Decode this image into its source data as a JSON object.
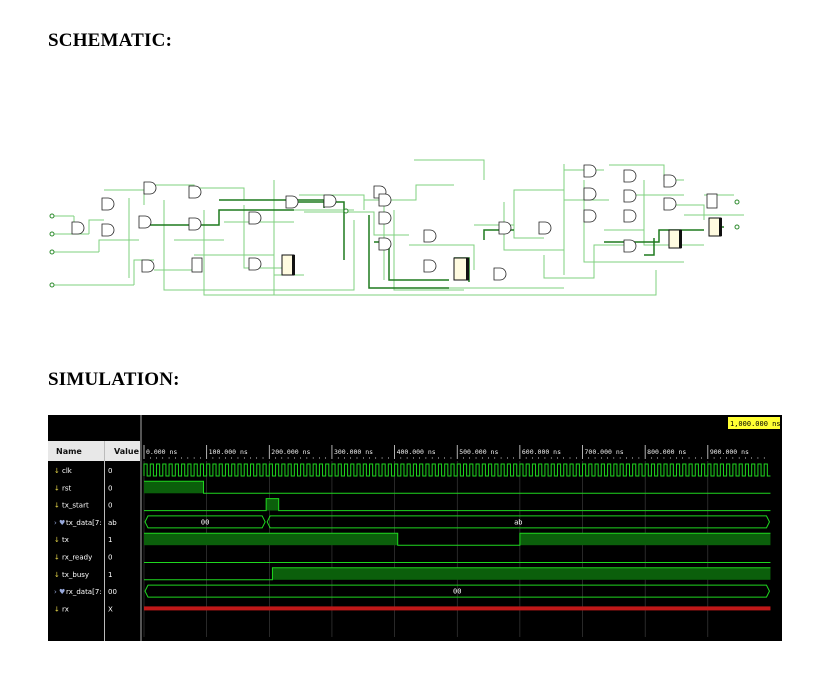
{
  "headings": {
    "schematic": "SCHEMATIC:",
    "simulation": "SIMULATION:"
  },
  "waveform": {
    "cursor_label": "1,000.000 ns",
    "col_name": "Name",
    "col_value": "Value",
    "time_ticks": [
      "0.000 ns",
      "100.000 ns",
      "200.000 ns",
      "300.000 ns",
      "400.000 ns",
      "500.000 ns",
      "600.000 ns",
      "700.000 ns",
      "800.000 ns",
      "900.000 ns"
    ],
    "signals": [
      {
        "name": "clk",
        "value": "0",
        "kind": "clock",
        "bus": false
      },
      {
        "name": "rst",
        "value": "0",
        "kind": "bit",
        "bus": false,
        "segments": [
          [
            0,
            95,
            1
          ],
          [
            95,
            1000,
            0
          ]
        ]
      },
      {
        "name": "tx_start",
        "value": "0",
        "kind": "bit",
        "bus": false,
        "segments": [
          [
            0,
            195,
            0
          ],
          [
            195,
            215,
            1
          ],
          [
            215,
            1000,
            0
          ]
        ]
      },
      {
        "name": "tx_data[7:0]",
        "value": "ab",
        "kind": "bus",
        "bus": true,
        "segments": [
          [
            0,
            195,
            "00"
          ],
          [
            195,
            1000,
            "ab"
          ]
        ]
      },
      {
        "name": "tx",
        "value": "1",
        "kind": "bit",
        "bus": false,
        "segments": [
          [
            0,
            405,
            1
          ],
          [
            405,
            600,
            0
          ],
          [
            600,
            1000,
            1
          ]
        ]
      },
      {
        "name": "rx_ready",
        "value": "0",
        "kind": "bit",
        "bus": false,
        "segments": [
          [
            0,
            1000,
            0
          ]
        ]
      },
      {
        "name": "tx_busy",
        "value": "1",
        "kind": "bit",
        "bus": false,
        "segments": [
          [
            0,
            205,
            0
          ],
          [
            205,
            1000,
            1
          ]
        ]
      },
      {
        "name": "rx_data[7:0]",
        "value": "00",
        "kind": "bus",
        "bus": true,
        "segments": [
          [
            0,
            1000,
            "00"
          ]
        ]
      },
      {
        "name": "rx",
        "value": "X",
        "kind": "unknown",
        "bus": false
      }
    ]
  }
}
